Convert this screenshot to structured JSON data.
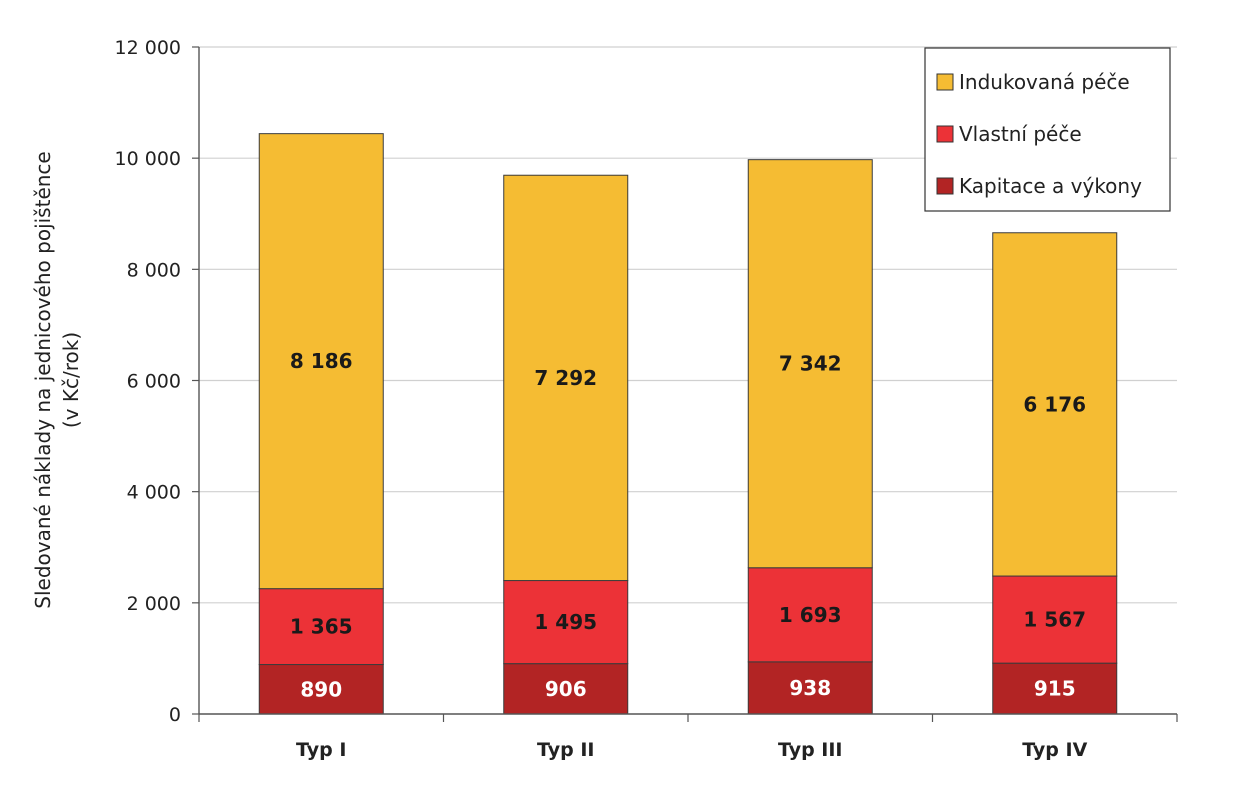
{
  "chart_data": {
    "type": "bar",
    "stacked": true,
    "categories": [
      "Typ I",
      "Typ II",
      "Typ III",
      "Typ IV"
    ],
    "series": [
      {
        "name": "Kapitace a výkony",
        "color": "#b22424",
        "label_color": "#ffffff",
        "values": [
          890,
          906,
          938,
          915
        ],
        "labels": [
          "890",
          "906",
          "938",
          "915"
        ]
      },
      {
        "name": "Vlastní péče",
        "color": "#ec3237",
        "label_color": "#1a1a1a",
        "values": [
          1365,
          1495,
          1693,
          1567
        ],
        "labels": [
          "1 365",
          "1 495",
          "1 693",
          "1 567"
        ]
      },
      {
        "name": "Indukovaná péče",
        "color": "#f5bc33",
        "label_color": "#1a1a1a",
        "values": [
          8186,
          7292,
          7342,
          6176
        ],
        "labels": [
          "8 186",
          "7 292",
          "7 342",
          "6 176"
        ]
      }
    ],
    "ylabel_line1": "Sledované náklady na jednicového pojištěnce",
    "ylabel_line2": "(v Kč/rok)",
    "ylim": [
      0,
      12000
    ],
    "yticks": [
      0,
      2000,
      4000,
      6000,
      8000,
      10000,
      12000
    ],
    "ytick_labels": [
      "0",
      "2 000",
      "4 000",
      "6 000",
      "8 000",
      "10 000",
      "12 000"
    ],
    "grid": true,
    "legend_position": "top-right",
    "legend_order": [
      "Indukovaná péče",
      "Vlastní péče",
      "Kapitace a výkony"
    ]
  }
}
